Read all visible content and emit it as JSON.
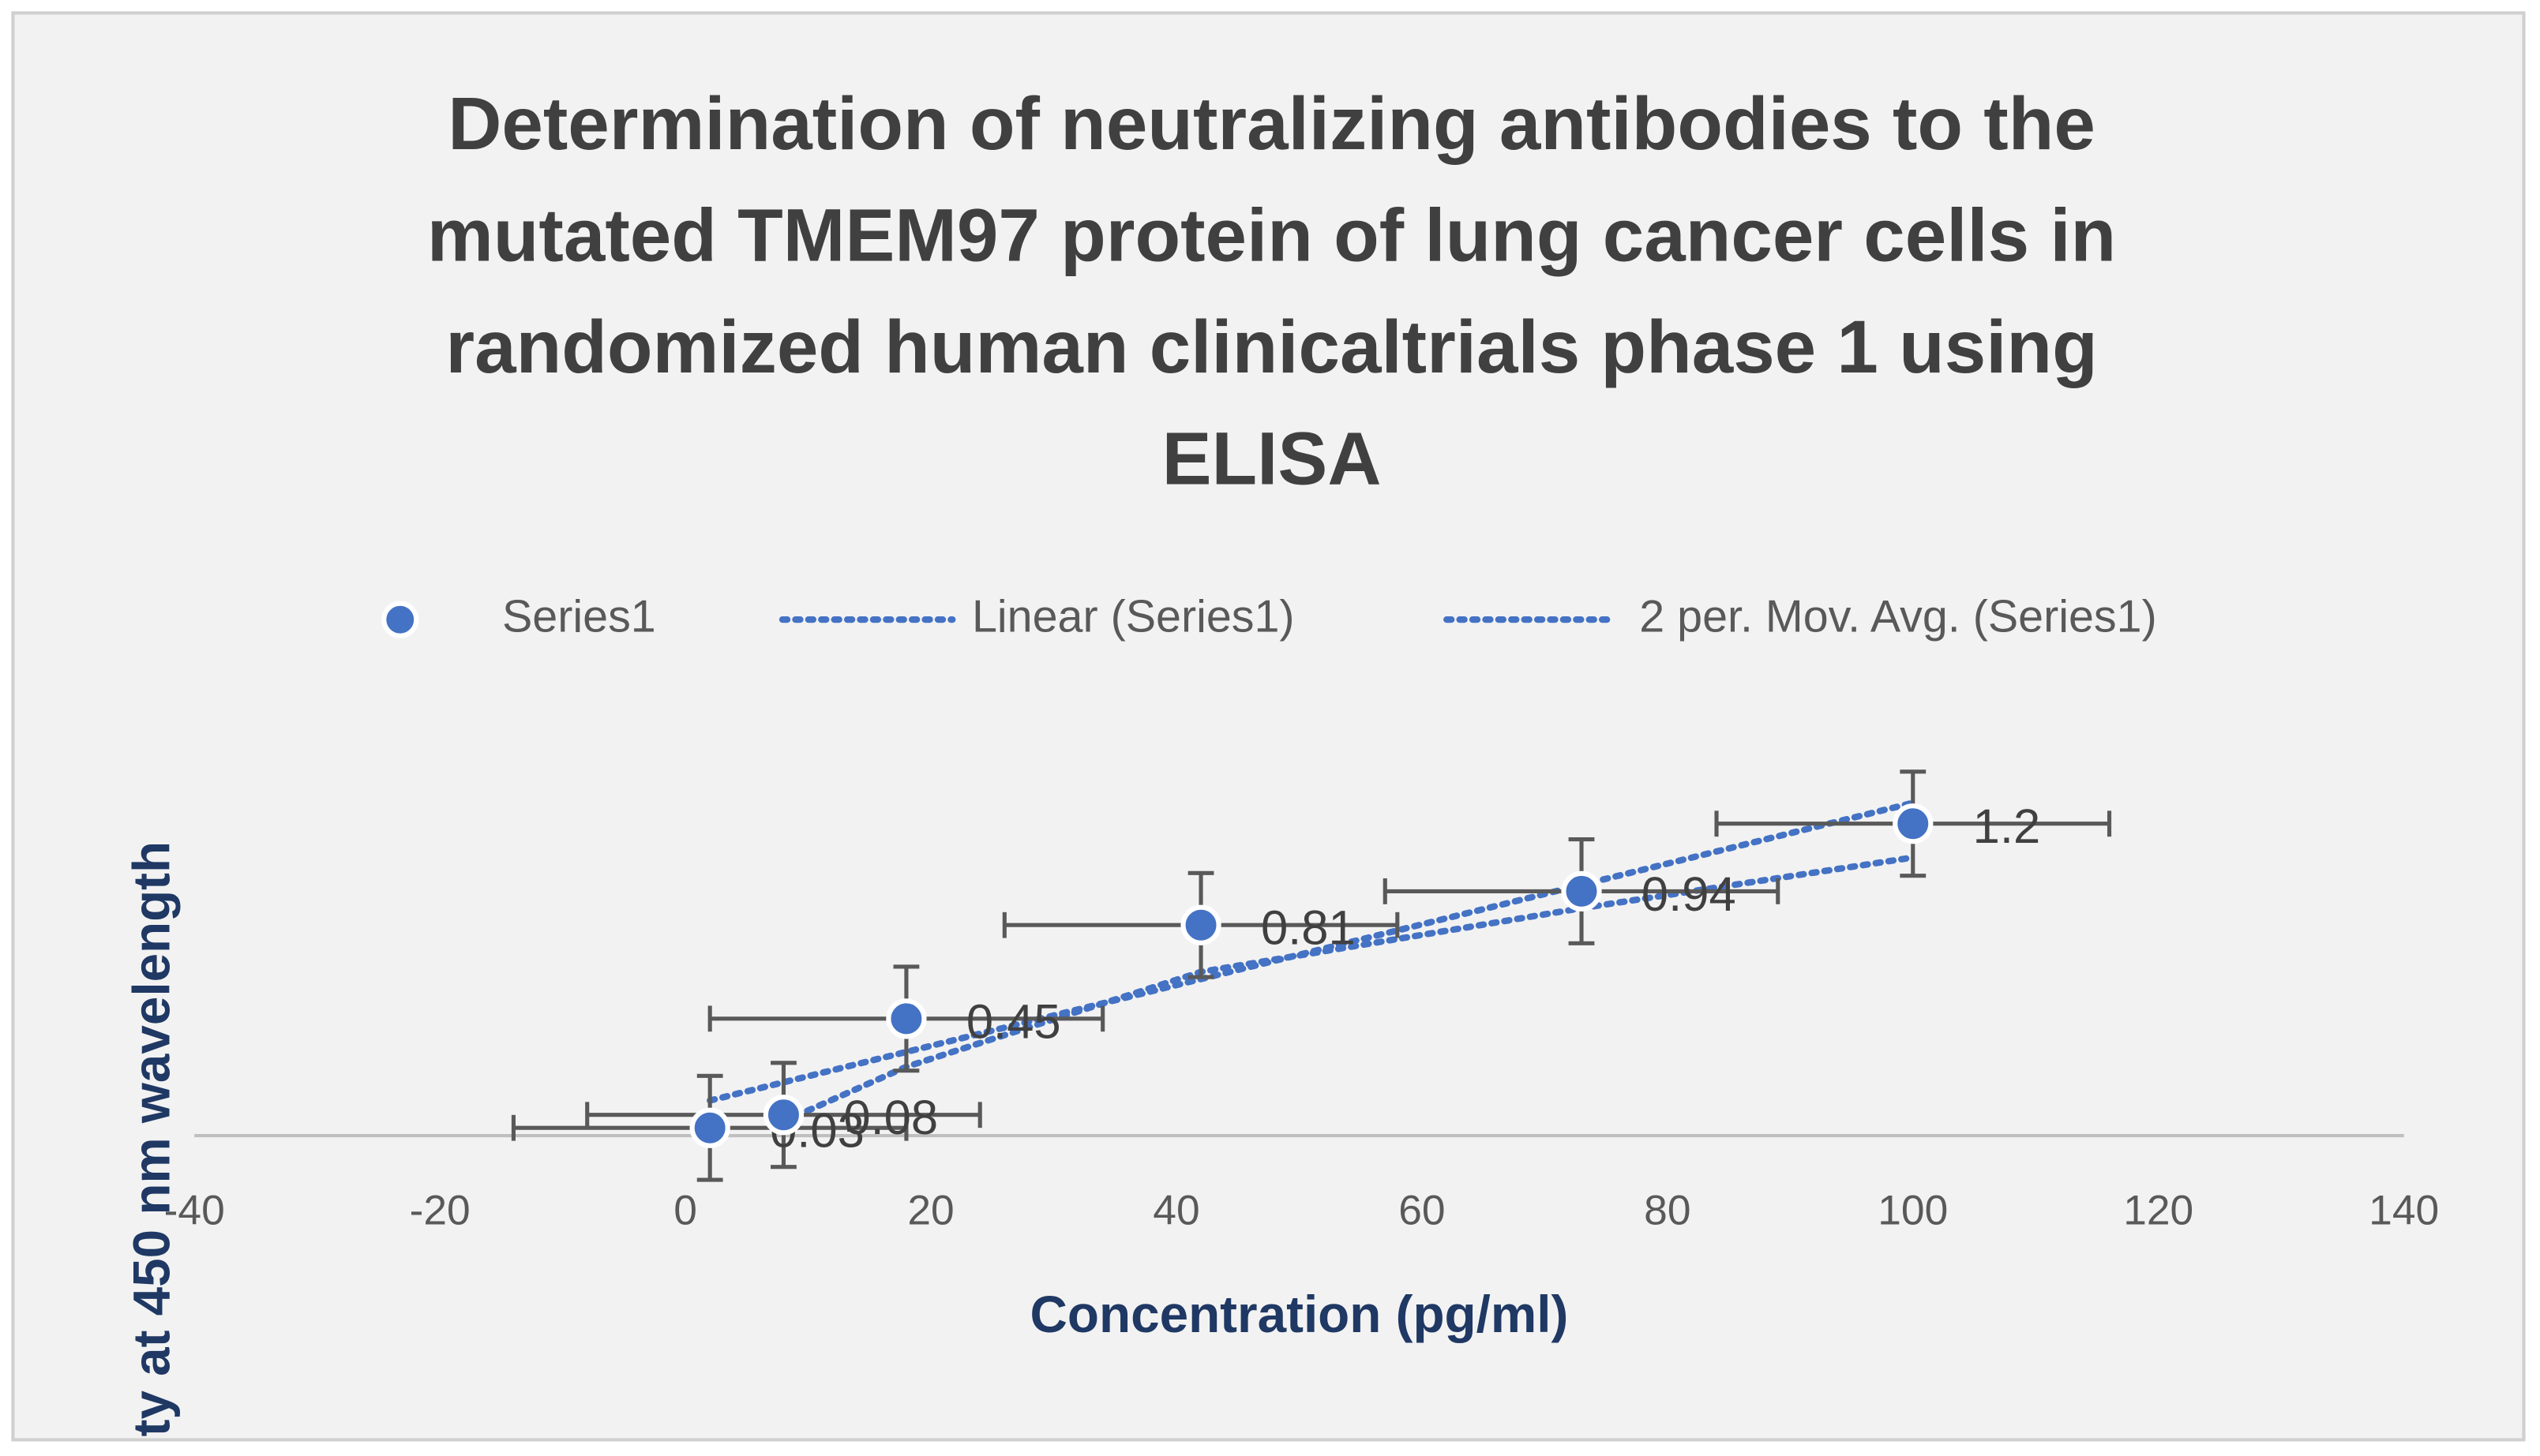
{
  "chart_data": {
    "type": "scatter",
    "title": "Determination of neutralizing antibodies to the mutated TMEM97 protein of lung cancer cells in randomized human clinicaltrials phase 1 using ELISA",
    "x_label": "Concentration (pg/ml)",
    "y_label": "ty at 450 nm wavelength",
    "x": [
      2,
      8,
      18,
      42,
      73,
      100
    ],
    "series": [
      {
        "name": "Series1",
        "color": "#4472c4",
        "values": [
          0.03,
          0.08,
          0.45,
          0.81,
          0.94,
          1.2
        ],
        "x_errors": [
          16,
          16,
          16,
          16,
          16,
          16
        ],
        "y_errors": [
          0.2,
          0.2,
          0.2,
          0.2,
          0.2,
          0.2
        ]
      }
    ],
    "trendlines": [
      {
        "name": "Linear (Series1)",
        "kind": "linear"
      },
      {
        "name": "2 per. Mov. Avg. (Series1)",
        "kind": "moving_average",
        "period": 2
      }
    ],
    "xlim": [
      -40,
      140
    ],
    "xticks": [
      -40,
      -20,
      0,
      20,
      40,
      60,
      80,
      100,
      120,
      140
    ],
    "ylim": [
      0,
      1.4
    ],
    "legend": "top",
    "data_labels": true
  }
}
